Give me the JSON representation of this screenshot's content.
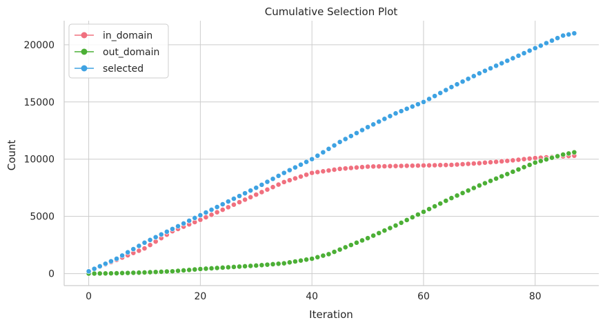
{
  "chart_data": {
    "type": "scatter",
    "title": "Cumulative Selection Plot",
    "xlabel": "Iteration",
    "ylabel": "Count",
    "xlim": [
      -4.4,
      91.4
    ],
    "ylim": [
      -1050,
      22100
    ],
    "xticks": [
      0,
      20,
      40,
      60,
      80
    ],
    "yticks": [
      0,
      5000,
      10000,
      15000,
      20000
    ],
    "grid": true,
    "legend_position": "top-left",
    "x": [
      0,
      87
    ],
    "series": [
      {
        "name": "in_domain",
        "color": "#f0707f",
        "anchors": [
          [
            0,
            200
          ],
          [
            5,
            1200
          ],
          [
            10,
            2200
          ],
          [
            15,
            3700
          ],
          [
            20,
            4700
          ],
          [
            25,
            5800
          ],
          [
            30,
            6900
          ],
          [
            35,
            8000
          ],
          [
            40,
            8800
          ],
          [
            45,
            9150
          ],
          [
            50,
            9350
          ],
          [
            55,
            9400
          ],
          [
            60,
            9450
          ],
          [
            65,
            9500
          ],
          [
            70,
            9650
          ],
          [
            75,
            9850
          ],
          [
            80,
            10100
          ],
          [
            87,
            10300
          ]
        ]
      },
      {
        "name": "out_domain",
        "color": "#4caf36",
        "anchors": [
          [
            0,
            0
          ],
          [
            5,
            30
          ],
          [
            10,
            100
          ],
          [
            15,
            200
          ],
          [
            20,
            400
          ],
          [
            25,
            550
          ],
          [
            30,
            700
          ],
          [
            35,
            900
          ],
          [
            40,
            1300
          ],
          [
            43,
            1700
          ],
          [
            45,
            2100
          ],
          [
            50,
            3100
          ],
          [
            55,
            4200
          ],
          [
            60,
            5400
          ],
          [
            65,
            6600
          ],
          [
            70,
            7700
          ],
          [
            75,
            8700
          ],
          [
            80,
            9700
          ],
          [
            85,
            10400
          ],
          [
            87,
            10600
          ]
        ]
      },
      {
        "name": "selected",
        "color": "#3ea2e2",
        "anchors": [
          [
            0,
            200
          ],
          [
            5,
            1300
          ],
          [
            10,
            2700
          ],
          [
            15,
            3900
          ],
          [
            20,
            5100
          ],
          [
            25,
            6300
          ],
          [
            30,
            7500
          ],
          [
            35,
            8800
          ],
          [
            40,
            10000
          ],
          [
            45,
            11500
          ],
          [
            50,
            12800
          ],
          [
            55,
            14000
          ],
          [
            60,
            15000
          ],
          [
            65,
            16300
          ],
          [
            70,
            17500
          ],
          [
            75,
            18600
          ],
          [
            80,
            19700
          ],
          [
            85,
            20800
          ],
          [
            87,
            21000
          ]
        ]
      }
    ]
  }
}
